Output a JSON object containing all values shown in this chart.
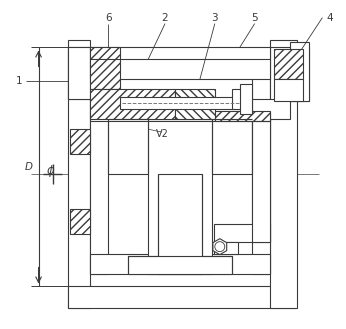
{
  "bg_color": "#ffffff",
  "line_color": "#3a3a3a",
  "fig_width": 3.46,
  "fig_height": 3.29,
  "dpi": 100,
  "label_fontsize": 7.5
}
